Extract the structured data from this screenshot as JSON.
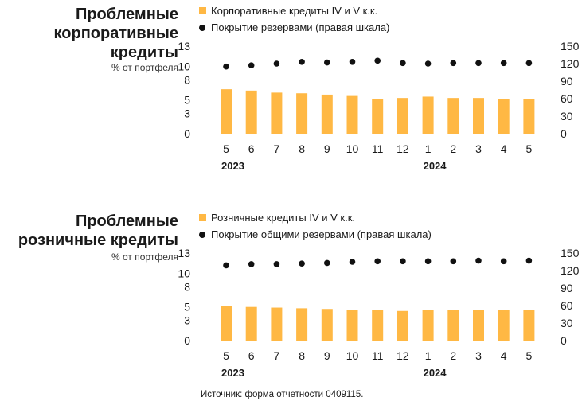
{
  "colors": {
    "bar": "#FFB844",
    "dot": "#111111"
  },
  "panels": [
    {
      "title": "Проблемные\nкорпоративные\nкредиты",
      "subtitle": "% от портфеля",
      "legend_bar": "Корпоративные кредиты IV и V к.к.",
      "legend_dot": "Покрытие резервами (правая шкала)"
    },
    {
      "title": "Проблемные\nрозничные кредиты",
      "subtitle": "% от портфеля",
      "legend_bar": "Розничные кредиты IV и V к.к.",
      "legend_dot": "Покрытие общими резервами (правая шкала)"
    }
  ],
  "source": "Источник: форма отчетности 0409115.",
  "chart_data": [
    {
      "type": "bar",
      "title": "Проблемные корпоративные кредиты",
      "subtitle": "% от портфеля",
      "categories": [
        "5",
        "6",
        "7",
        "8",
        "9",
        "10",
        "11",
        "12",
        "1",
        "2",
        "3",
        "4",
        "5"
      ],
      "year_labels": [
        {
          "category_index": 0,
          "label": "2023"
        },
        {
          "category_index": 8,
          "label": "2024"
        }
      ],
      "series": [
        {
          "name": "Корпоративные кредиты IV и V к.к.",
          "type": "bar",
          "axis": "left",
          "values": [
            6.6,
            6.4,
            6.1,
            6.0,
            5.8,
            5.6,
            5.2,
            5.3,
            5.5,
            5.3,
            5.3,
            5.2,
            5.2
          ]
        },
        {
          "name": "Покрытие резервами (правая шкала)",
          "type": "scatter",
          "axis": "right",
          "values": [
            115,
            117,
            120,
            123,
            122,
            123,
            125,
            121,
            120,
            121,
            121,
            121,
            121
          ]
        }
      ],
      "yticks_left": [
        0,
        3,
        5,
        8,
        10,
        13
      ],
      "yticks_right": [
        0,
        30,
        60,
        90,
        120,
        150
      ],
      "ylim_left": [
        0,
        13
      ],
      "ylim_right": [
        0,
        150
      ],
      "grid": false
    },
    {
      "type": "bar",
      "title": "Проблемные розничные кредиты",
      "subtitle": "% от портфеля",
      "categories": [
        "5",
        "6",
        "7",
        "8",
        "9",
        "10",
        "11",
        "12",
        "1",
        "2",
        "3",
        "4",
        "5"
      ],
      "year_labels": [
        {
          "category_index": 0,
          "label": "2023"
        },
        {
          "category_index": 8,
          "label": "2024"
        }
      ],
      "series": [
        {
          "name": "Розничные кредиты IV и V к.к.",
          "type": "bar",
          "axis": "left",
          "values": [
            5.1,
            5.0,
            4.9,
            4.8,
            4.7,
            4.6,
            4.5,
            4.4,
            4.5,
            4.6,
            4.5,
            4.5,
            4.5
          ]
        },
        {
          "name": "Покрытие общими резервами (правая шкала)",
          "type": "scatter",
          "axis": "right",
          "values": [
            129,
            131,
            131,
            132,
            133,
            135,
            136,
            136,
            136,
            136,
            137,
            136,
            137
          ]
        }
      ],
      "yticks_left": [
        0,
        3,
        5,
        8,
        10,
        13
      ],
      "yticks_right": [
        0,
        30,
        60,
        90,
        120,
        150
      ],
      "ylim_left": [
        0,
        13
      ],
      "ylim_right": [
        0,
        150
      ],
      "grid": false
    }
  ]
}
